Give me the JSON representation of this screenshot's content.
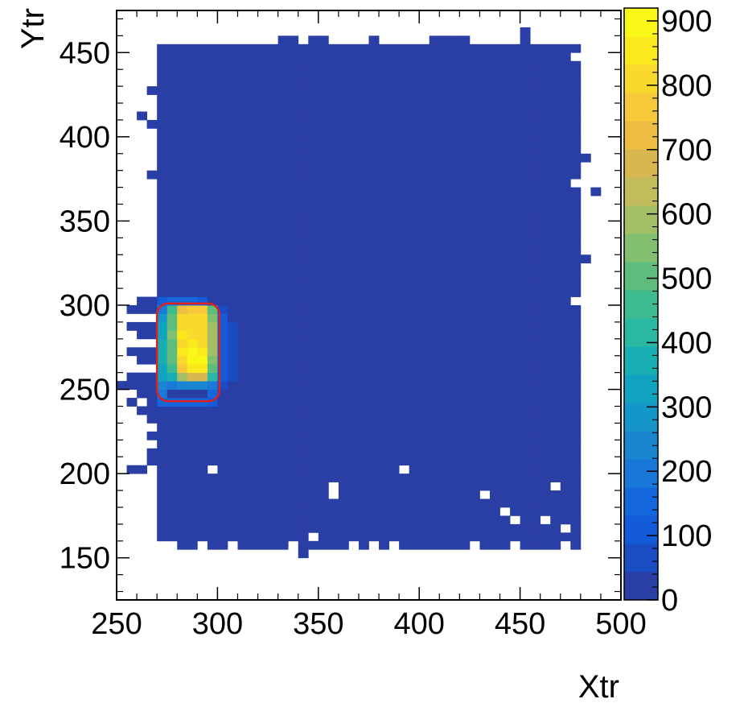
{
  "chart_data": {
    "type": "heatmap",
    "title": "",
    "xlabel": "Xtr",
    "ylabel": "Ytr",
    "xlim": [
      250,
      500
    ],
    "ylim": [
      125,
      475
    ],
    "xticks": [
      250,
      300,
      350,
      400,
      450,
      500
    ],
    "yticks": [
      150,
      200,
      250,
      300,
      350,
      400,
      450
    ],
    "bin_size": 5,
    "colorbar": {
      "min": 0,
      "max": 920,
      "ticks": [
        0,
        100,
        200,
        300,
        400,
        500,
        600,
        700,
        800,
        900
      ],
      "colors": [
        "#2a3fa5",
        "#1a4dc4",
        "#135bd9",
        "#1568dc",
        "#1a78d8",
        "#1a86d2",
        "#1496c8",
        "#10a4c0",
        "#19aeb2",
        "#2ab8a3",
        "#3dbb8e",
        "#5ebd7c",
        "#82bf6f",
        "#a3bf66",
        "#c2bc5c",
        "#d8b650",
        "#ecbd42",
        "#f7c83a",
        "#f9d92c",
        "#fbe91e",
        "#f9f715"
      ]
    },
    "background_level": 5,
    "base_region": {
      "x": [
        270,
        480
      ],
      "y": [
        155,
        455
      ]
    },
    "hotspot": {
      "x_range": [
        275,
        295
      ],
      "y_range": [
        245,
        295
      ],
      "peak_value": 900,
      "values_approx": [
        [
          480,
          720,
          760,
          780,
          520
        ],
        [
          500,
          790,
          810,
          800,
          560
        ],
        [
          510,
          820,
          830,
          810,
          580
        ],
        [
          530,
          840,
          830,
          810,
          590
        ],
        [
          520,
          830,
          850,
          800,
          580
        ],
        [
          520,
          850,
          880,
          840,
          570
        ],
        [
          500,
          820,
          900,
          880,
          540
        ],
        [
          450,
          760,
          860,
          860,
          500
        ],
        [
          380,
          600,
          680,
          700,
          420
        ],
        [
          200,
          240,
          260,
          240,
          180
        ]
      ]
    },
    "contour": {
      "color": "#e0201e",
      "x_range": [
        270,
        301
      ],
      "y_range": [
        243,
        301
      ]
    }
  }
}
